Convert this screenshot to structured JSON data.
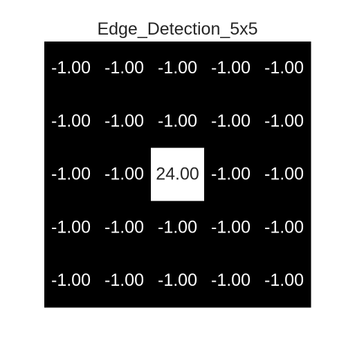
{
  "chart_data": {
    "type": "heatmap",
    "title": "Edge_Detection_5x5",
    "rows": 5,
    "cols": 5,
    "values": [
      [
        -1.0,
        -1.0,
        -1.0,
        -1.0,
        -1.0
      ],
      [
        -1.0,
        -1.0,
        -1.0,
        -1.0,
        -1.0
      ],
      [
        -1.0,
        -1.0,
        24.0,
        -1.0,
        -1.0
      ],
      [
        -1.0,
        -1.0,
        -1.0,
        -1.0,
        -1.0
      ],
      [
        -1.0,
        -1.0,
        -1.0,
        -1.0,
        -1.0
      ]
    ],
    "value_labels": [
      [
        "-1.00",
        "-1.00",
        "-1.00",
        "-1.00",
        "-1.00"
      ],
      [
        "-1.00",
        "-1.00",
        "-1.00",
        "-1.00",
        "-1.00"
      ],
      [
        "-1.00",
        "-1.00",
        "24.00",
        "-1.00",
        "-1.00"
      ],
      [
        "-1.00",
        "-1.00",
        "-1.00",
        "-1.00",
        "-1.00"
      ],
      [
        "-1.00",
        "-1.00",
        "-1.00",
        "-1.00",
        "-1.00"
      ]
    ],
    "colormap": "gray",
    "low_color": "#000000",
    "high_color": "#ffffff",
    "low_text_color": "#ffffff",
    "high_text_color": "#262626",
    "grid": false,
    "axes_visible": false
  }
}
